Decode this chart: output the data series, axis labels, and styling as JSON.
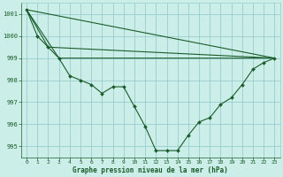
{
  "background_color": "#cceee8",
  "grid_color": "#99cccc",
  "line_color": "#1a5c2a",
  "xlabel": "Graphe pression niveau de la mer (hPa)",
  "xlim": [
    -0.5,
    23.5
  ],
  "ylim": [
    994.5,
    1001.5
  ],
  "yticks": [
    995,
    996,
    997,
    998,
    999,
    1000,
    1001
  ],
  "xticks": [
    0,
    1,
    2,
    3,
    4,
    5,
    6,
    7,
    8,
    9,
    10,
    11,
    12,
    13,
    14,
    15,
    16,
    17,
    18,
    19,
    20,
    21,
    22,
    23
  ],
  "series_main": {
    "x": [
      0,
      1,
      2,
      3,
      4,
      5,
      6,
      7,
      8,
      9,
      10,
      11,
      12,
      13,
      14,
      15,
      16,
      17,
      18,
      19,
      20,
      21,
      22,
      23
    ],
    "y": [
      1001.2,
      1000.0,
      999.5,
      999.0,
      998.2,
      998.0,
      997.8,
      997.4,
      997.7,
      997.7,
      996.8,
      995.9,
      994.8,
      994.8,
      994.8,
      995.5,
      996.1,
      996.3,
      996.9,
      997.2,
      997.8,
      998.5,
      998.8,
      999.0
    ]
  },
  "line_upper1": {
    "x": [
      0,
      23
    ],
    "y": [
      1001.2,
      999.0
    ]
  },
  "line_upper2": {
    "x": [
      0,
      3,
      23
    ],
    "y": [
      1001.2,
      999.0,
      999.0
    ]
  },
  "line_upper3": {
    "x": [
      0,
      2,
      23
    ],
    "y": [
      1001.2,
      999.5,
      999.0
    ]
  }
}
